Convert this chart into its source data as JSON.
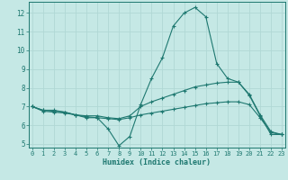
{
  "xlabel": "Humidex (Indice chaleur)",
  "background_color": "#c5e8e5",
  "grid_color": "#b0d8d5",
  "line_color": "#1e7870",
  "x": [
    0,
    1,
    2,
    3,
    4,
    5,
    6,
    7,
    8,
    9,
    10,
    11,
    12,
    13,
    14,
    15,
    16,
    17,
    18,
    19,
    20,
    21,
    22,
    23
  ],
  "line1": [
    7.0,
    6.8,
    6.8,
    6.7,
    6.55,
    6.4,
    6.4,
    5.8,
    4.9,
    5.4,
    7.1,
    8.5,
    9.6,
    11.3,
    12.0,
    12.3,
    11.8,
    9.3,
    8.5,
    8.3,
    7.6,
    6.5,
    5.5,
    5.5
  ],
  "line2": [
    7.0,
    6.8,
    6.75,
    6.7,
    6.55,
    6.5,
    6.5,
    6.4,
    6.35,
    6.5,
    7.0,
    7.25,
    7.45,
    7.65,
    7.85,
    8.05,
    8.15,
    8.25,
    8.3,
    8.3,
    7.65,
    6.55,
    5.65,
    5.5
  ],
  "line3": [
    7.0,
    6.75,
    6.7,
    6.65,
    6.55,
    6.45,
    6.4,
    6.35,
    6.3,
    6.4,
    6.55,
    6.65,
    6.75,
    6.85,
    6.95,
    7.05,
    7.15,
    7.2,
    7.25,
    7.25,
    7.1,
    6.4,
    5.6,
    5.5
  ],
  "xlim": [
    0,
    23
  ],
  "ylim": [
    4.8,
    12.6
  ],
  "yticks": [
    5,
    6,
    7,
    8,
    9,
    10,
    11,
    12
  ],
  "xticks": [
    0,
    1,
    2,
    3,
    4,
    5,
    6,
    7,
    8,
    9,
    10,
    11,
    12,
    13,
    14,
    15,
    16,
    17,
    18,
    19,
    20,
    21,
    22,
    23
  ],
  "tick_fontsize": 5.0,
  "xlabel_fontsize": 6.0
}
